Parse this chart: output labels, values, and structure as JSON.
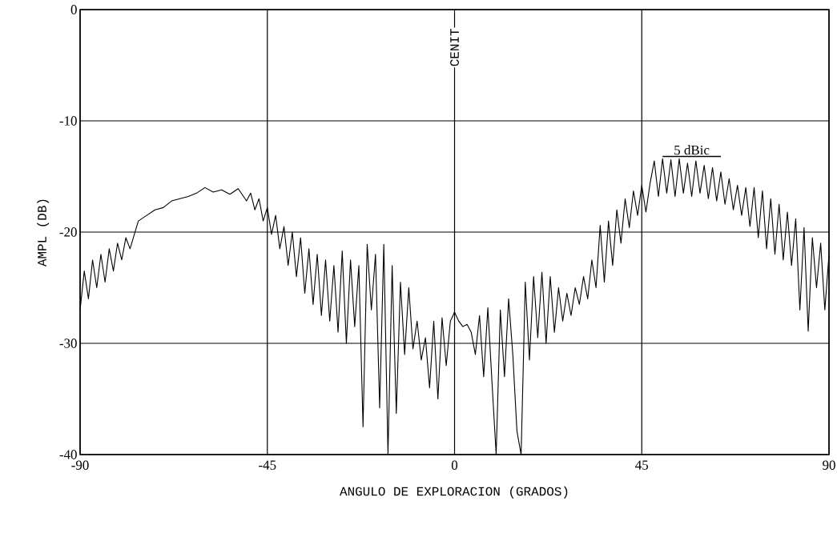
{
  "chart_data": {
    "type": "line",
    "xlabel": "ANGULO DE EXPLORACION (GRADOS)",
    "ylabel": "AMPL (DB)",
    "annotations": [
      "CENIT"
    ],
    "series": [
      {
        "color": "#000000",
        "x": [
          -90,
          -89,
          -88,
          -87,
          -86,
          -85,
          -84,
          -83,
          -82,
          -81,
          -80,
          -79,
          -78,
          -76,
          -74,
          -72,
          -70,
          -68,
          -66,
          -64,
          -62,
          -60,
          -58,
          -56,
          -54,
          -52,
          -50,
          -49,
          -48,
          -47,
          -46,
          -45,
          -44,
          -43,
          -42,
          -41,
          -40,
          -39,
          -38,
          -37,
          -36,
          -35,
          -34,
          -33,
          -32,
          -31,
          -30,
          -29,
          -28,
          -27,
          -26,
          -25,
          -24,
          -23,
          -22,
          -21,
          -20,
          -19,
          -18,
          -17,
          -16,
          -15,
          -14,
          -13,
          -12,
          -11,
          -10,
          -9,
          -8,
          -7,
          -6,
          -5,
          -4,
          -3,
          -2,
          -1,
          0,
          1,
          2,
          3,
          4,
          5,
          6,
          7,
          8,
          9,
          10,
          11,
          12,
          13,
          14,
          15,
          16,
          17,
          18,
          19,
          20,
          21,
          22,
          23,
          24,
          25,
          26,
          27,
          28,
          29,
          30,
          31,
          32,
          33,
          34,
          35,
          36,
          37,
          38,
          39,
          40,
          41,
          42,
          43,
          44,
          45,
          46,
          47,
          48,
          49,
          50,
          51,
          52,
          53,
          54,
          55,
          56,
          57,
          58,
          59,
          60,
          61,
          62,
          63,
          64,
          65,
          66,
          67,
          68,
          69,
          70,
          71,
          72,
          73,
          74,
          75,
          76,
          77,
          78,
          79,
          80,
          81,
          82,
          83,
          84,
          85,
          86,
          87,
          88,
          89,
          90
        ],
        "values": [
          -27,
          -23.5,
          -26,
          -22.5,
          -25,
          -22,
          -24.5,
          -21.5,
          -23.5,
          -21,
          -22.5,
          -20.5,
          -21.5,
          -19,
          -18.5,
          -18,
          -17.8,
          -17.2,
          -17,
          -16.8,
          -16.5,
          -16,
          -16.4,
          -16.2,
          -16.6,
          -16.1,
          -17.2,
          -16.5,
          -18,
          -17,
          -19,
          -17.8,
          -20.2,
          -18.5,
          -21.5,
          -19.5,
          -23,
          -20,
          -24,
          -20.5,
          -25.5,
          -21.5,
          -26.5,
          -22,
          -27.5,
          -22.5,
          -28,
          -23,
          -29,
          -21.7,
          -30,
          -22.5,
          -28.5,
          -23,
          -37.5,
          -21.1,
          -27,
          -22,
          -35.8,
          -21.1,
          -40,
          -23,
          -36.3,
          -24.5,
          -31,
          -25,
          -30.5,
          -28,
          -31.5,
          -29.5,
          -34,
          -28,
          -35,
          -27.7,
          -32,
          -28,
          -27.2,
          -28,
          -28.5,
          -28.3,
          -29,
          -31,
          -27.5,
          -33,
          -26.8,
          -33.5,
          -40,
          -27,
          -33,
          -26,
          -31,
          -37.9,
          -40,
          -24.5,
          -31.5,
          -24,
          -29.5,
          -23.6,
          -30,
          -24,
          -29,
          -25,
          -28,
          -25.5,
          -27.5,
          -25,
          -26.5,
          -24,
          -26,
          -22.5,
          -25,
          -19.4,
          -24.5,
          -19,
          -23,
          -18,
          -21,
          -17,
          -19.6,
          -16.3,
          -18.5,
          -15.8,
          -18.2,
          -15.6,
          -13.6,
          -16.8,
          -13.4,
          -16.5,
          -13.5,
          -16.8,
          -13.4,
          -16.5,
          -13.8,
          -16.8,
          -13.6,
          -16.5,
          -14,
          -17,
          -14.2,
          -17.2,
          -14.6,
          -17.5,
          -15.2,
          -18,
          -15.8,
          -18.5,
          -16,
          -19.5,
          -16,
          -20.5,
          -16.3,
          -21.5,
          -17,
          -22,
          -17.5,
          -22.5,
          -18.2,
          -23,
          -18.8,
          -27,
          -19.6,
          -28.9,
          -20.5,
          -25,
          -21,
          -27,
          -22
        ]
      },
      {
        "name": "5 dBic",
        "color": "#000000",
        "x": [
          50,
          64
        ],
        "values": [
          -13.2,
          -13.2
        ]
      }
    ],
    "xlim": [
      -90,
      90
    ],
    "ylim": [
      -40,
      0
    ],
    "xticks": [
      -90,
      -45,
      0,
      45,
      90
    ],
    "yticks": [
      -40,
      -30,
      -20,
      -10,
      0
    ],
    "grid": true
  }
}
